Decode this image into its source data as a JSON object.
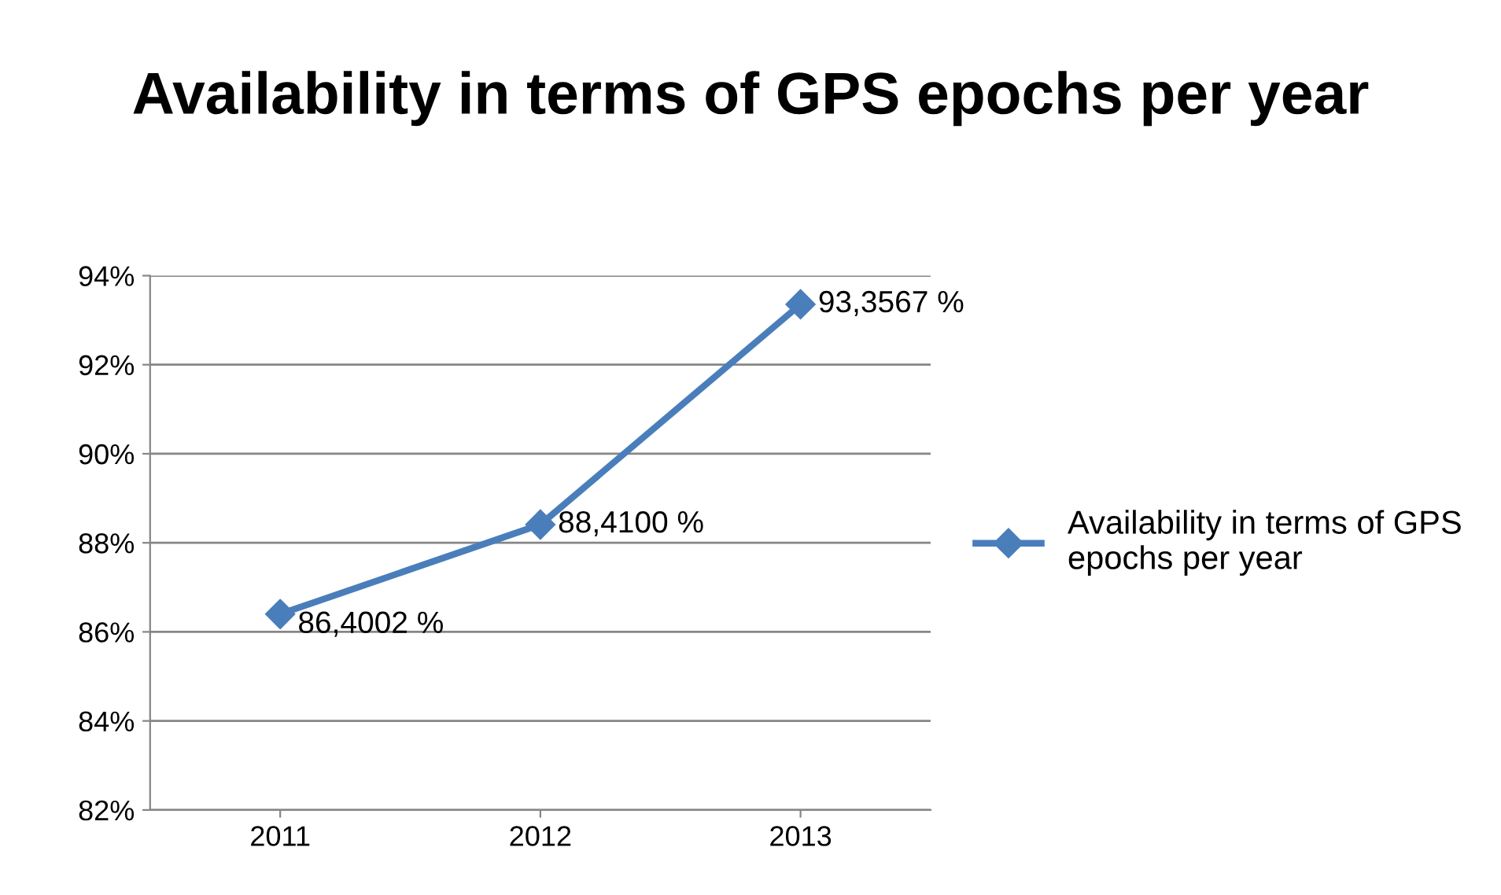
{
  "chart_data": {
    "type": "line",
    "title": "Availability in terms of GPS epochs per year",
    "categories": [
      "2011",
      "2012",
      "2013"
    ],
    "series": [
      {
        "name": "Availability in terms of GPS epochs per year",
        "color": "#4a7ebb",
        "values": [
          86.4002,
          88.41,
          93.3567
        ],
        "value_labels": [
          "86,4002 %",
          "88,4100 %",
          "93,3567 %"
        ]
      }
    ],
    "ylim": [
      82,
      94
    ],
    "yticks": [
      {
        "value": 82,
        "label": "82%"
      },
      {
        "value": 84,
        "label": "84%"
      },
      {
        "value": 86,
        "label": "86%"
      },
      {
        "value": 88,
        "label": "88%"
      },
      {
        "value": 90,
        "label": "90%"
      },
      {
        "value": 92,
        "label": "92%"
      },
      {
        "value": 94,
        "label": "94%"
      }
    ],
    "grid": "y",
    "legend": "right",
    "marker": "diamond",
    "line_style": "solid"
  }
}
